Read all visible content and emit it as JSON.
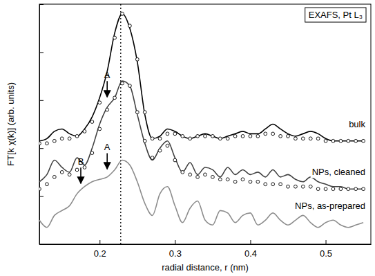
{
  "chart_data": {
    "type": "line",
    "title": "EXAFS, Pt L₃",
    "x_label": "radial distance, r (nm)",
    "y_label": "FT[k χ(k)] (arb. units)",
    "x": [
      0.12,
      0.13,
      0.14,
      0.15,
      0.16,
      0.17,
      0.18,
      0.19,
      0.2,
      0.21,
      0.22,
      0.23,
      0.24,
      0.25,
      0.26,
      0.27,
      0.28,
      0.29,
      0.3,
      0.31,
      0.32,
      0.33,
      0.34,
      0.35,
      0.36,
      0.37,
      0.38,
      0.39,
      0.4,
      0.41,
      0.42,
      0.43,
      0.44,
      0.45,
      0.46,
      0.47,
      0.48,
      0.49,
      0.5,
      0.51,
      0.52,
      0.53,
      0.54,
      0.55
    ],
    "series": [
      {
        "name": "bulk",
        "color": "#000000",
        "line_style": "solid",
        "values": [
          4.3,
          4.4,
          4.7,
          4.8,
          4.6,
          4.5,
          4.8,
          5.3,
          6.1,
          7.2,
          8.8,
          9.6,
          9.0,
          7.6,
          5.4,
          4.4,
          4.5,
          4.8,
          4.7,
          4.5,
          4.4,
          4.5,
          4.6,
          4.5,
          4.4,
          4.5,
          4.6,
          4.7,
          4.6,
          4.6,
          4.8,
          5.0,
          4.8,
          4.6,
          4.5,
          4.6,
          4.7,
          4.6,
          4.4,
          4.3,
          4.3,
          4.3,
          4.3,
          4.3
        ]
      },
      {
        "color": "#000000",
        "marker": "circle",
        "line_style": "none",
        "values": [
          4.2,
          4.2,
          4.3,
          4.4,
          4.4,
          4.5,
          4.7,
          5.1,
          5.9,
          7.0,
          8.6,
          9.6,
          9.1,
          7.7,
          5.5,
          4.4,
          4.4,
          4.6,
          4.6,
          4.5,
          4.4,
          4.5,
          4.5,
          4.5,
          4.4,
          4.4,
          4.5,
          4.5,
          4.5,
          4.5,
          4.6,
          4.6,
          4.5,
          4.5,
          4.4,
          4.4,
          4.4,
          4.4,
          4.3,
          4.3,
          4.3,
          4.3,
          4.3,
          4.3
        ]
      },
      {
        "name": "NPs, cleaned",
        "color": "#404040",
        "line_style": "solid",
        "values": [
          2.6,
          2.9,
          3.5,
          3.2,
          3.0,
          3.6,
          3.3,
          4.0,
          5.0,
          5.7,
          6.1,
          6.8,
          6.6,
          5.4,
          4.2,
          3.5,
          4.0,
          4.3,
          3.6,
          3.0,
          3.4,
          2.9,
          3.2,
          3.1,
          2.8,
          3.2,
          2.9,
          3.1,
          2.9,
          3.0,
          2.8,
          3.1,
          2.8,
          2.9,
          2.7,
          2.6,
          2.8,
          2.6,
          2.5,
          2.4,
          2.4,
          2.3,
          2.3,
          2.3
        ]
      },
      {
        "color": "#000000",
        "marker": "circle",
        "line_style": "none",
        "values": [
          2.3,
          2.5,
          2.8,
          3.0,
          2.9,
          3.1,
          3.2,
          3.8,
          4.8,
          5.6,
          6.1,
          6.7,
          6.6,
          5.5,
          4.3,
          3.6,
          3.9,
          4.1,
          3.5,
          3.0,
          2.9,
          2.8,
          2.9,
          2.8,
          2.7,
          2.7,
          2.6,
          2.7,
          2.6,
          2.6,
          2.5,
          2.5,
          2.5,
          2.4,
          2.4,
          2.4,
          2.4,
          2.3,
          2.3,
          2.3,
          2.3,
          2.3,
          2.3,
          2.3
        ]
      },
      {
        "name": "NPs, as-prepared",
        "color": "#8c8c8c",
        "line_style": "solid",
        "values": [
          1.0,
          0.7,
          1.2,
          1.4,
          1.6,
          2.1,
          2.4,
          2.6,
          2.7,
          2.8,
          3.1,
          3.5,
          3.3,
          2.6,
          1.7,
          1.2,
          2.1,
          2.4,
          1.6,
          0.9,
          1.5,
          1.8,
          1.0,
          0.8,
          1.4,
          1.3,
          0.9,
          1.2,
          1.3,
          0.8,
          1.0,
          1.3,
          1.0,
          0.8,
          1.0,
          1.2,
          0.9,
          0.7,
          0.9,
          1.0,
          0.8,
          0.7,
          0.8,
          0.9
        ]
      }
    ],
    "vline": 0.228,
    "annotations": [
      {
        "text": "A",
        "x": 0.21,
        "y": 6.1
      },
      {
        "text": "A",
        "x": 0.21,
        "y": 3.1
      },
      {
        "text": "B",
        "x": 0.175,
        "y": 2.5
      }
    ],
    "xlim": [
      0.12,
      0.56
    ],
    "xticks": [
      0.2,
      0.3,
      0.4,
      0.5
    ],
    "ylim": [
      0,
      10
    ],
    "yticks": [
      0,
      2,
      4,
      6,
      8,
      10
    ],
    "tick_labels": "x",
    "grid": false
  }
}
